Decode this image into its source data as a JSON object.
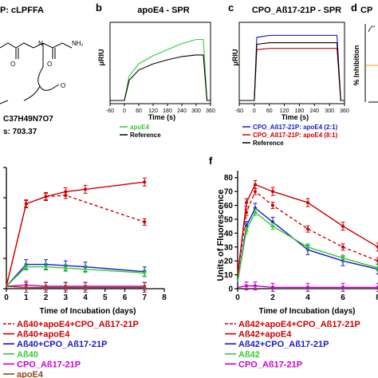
{
  "panel_a": {
    "title": "P: cLPFFA",
    "formula": "C37H49N7O7",
    "mass": "s: 703.37"
  },
  "colors": {
    "green": "#33cc33",
    "black": "#000000",
    "blue": "#1a1ac8",
    "red": "#cc0000",
    "darkred": "#d42020",
    "magenta": "#cc00cc",
    "brown": "#8a4a1a",
    "orange": "#ff9900"
  },
  "chart_data": [
    {
      "panel": "b",
      "type": "line",
      "title": "apoE4 - SPR",
      "xlabel": "Time (s)",
      "ylabel": "μRIU",
      "xlim": [
        -60,
        360
      ],
      "x_ticks": [
        "-60",
        "0",
        "60",
        "120",
        "180",
        "240",
        "300",
        "360"
      ],
      "legend": [
        "apoE4",
        "Reference"
      ],
      "series": [
        {
          "name": "apoE4",
          "x": [
            -60,
            0,
            20,
            60,
            120,
            180,
            240,
            300,
            330,
            345,
            360
          ],
          "y": [
            0,
            0,
            60,
            90,
            110,
            125,
            140,
            150,
            150,
            0,
            0
          ]
        },
        {
          "name": "Reference",
          "x": [
            -60,
            0,
            20,
            60,
            120,
            180,
            240,
            300,
            330,
            345,
            360
          ],
          "y": [
            0,
            0,
            50,
            75,
            90,
            100,
            108,
            112,
            112,
            0,
            0
          ]
        }
      ]
    },
    {
      "panel": "c",
      "type": "line",
      "title": "CPO_Aß17-21P - SPR",
      "xlabel": "Time (s)",
      "ylabel": "μRIU",
      "xlim": [
        -60,
        360
      ],
      "x_ticks": [
        "-60",
        "0",
        "60",
        "120",
        "180",
        "240",
        "300",
        "360"
      ],
      "legend": [
        "CPO_Aß17-21P: apoE4 (2:1)",
        "CPO_Aß17-21P: apoE4 (8:1)",
        "Reference"
      ],
      "series": [
        {
          "name": "CPO_Aß17-21P: apoE4 (2:1)",
          "x": [
            -60,
            0,
            10,
            60,
            180,
            300,
            330,
            345,
            360
          ],
          "y": [
            0,
            0,
            155,
            160,
            160,
            160,
            160,
            0,
            0
          ]
        },
        {
          "name": "CPO_Aß17-21P: apoE4 (8:1)",
          "x": [
            -60,
            0,
            10,
            60,
            180,
            300,
            330,
            345,
            360
          ],
          "y": [
            0,
            0,
            125,
            128,
            128,
            128,
            128,
            0,
            0
          ]
        },
        {
          "name": "Reference",
          "x": [
            -60,
            0,
            10,
            60,
            180,
            300,
            330,
            345,
            360
          ],
          "y": [
            0,
            0,
            138,
            142,
            142,
            142,
            142,
            0,
            0
          ]
        }
      ]
    },
    {
      "panel": "d",
      "type": "line",
      "title": "CP",
      "ylabel": "% Inhibition",
      "series": []
    },
    {
      "panel": "e",
      "type": "line",
      "xlabel": "Time of Incubation (days)",
      "xlim": [
        0,
        8
      ],
      "x_ticks": [
        "0",
        "1",
        "2",
        "3",
        "4",
        "5",
        "6",
        "7",
        "8"
      ],
      "ylim": [
        0,
        100
      ],
      "legend": [
        "Aß40+apoE4+CPO_Aß17-21P",
        "Aß40+apoE4",
        "Aß40+CPO_Aß17-21P",
        "Aß40",
        "CPO_Aß17-21P",
        "apoE4"
      ],
      "series": [
        {
          "name": "Aß40+apoE4+CPO_Aß17-21P",
          "x": [
            0,
            1,
            2,
            3,
            7
          ],
          "y": [
            2,
            70,
            76,
            77,
            55
          ]
        },
        {
          "name": "Aß40+apoE4",
          "x": [
            0,
            1,
            2,
            3,
            4,
            7
          ],
          "y": [
            2,
            70,
            76,
            80,
            82,
            88
          ]
        },
        {
          "name": "Aß40+CPO_Aß17-21P",
          "x": [
            0,
            1,
            2,
            3,
            4,
            7
          ],
          "y": [
            2,
            20,
            20,
            19,
            18,
            14
          ]
        },
        {
          "name": "Aß40",
          "x": [
            0,
            1,
            2,
            3,
            4,
            7
          ],
          "y": [
            2,
            18,
            18,
            17,
            16,
            13
          ]
        },
        {
          "name": "CPO_Aß17-21P",
          "x": [
            0,
            1,
            2,
            3,
            4,
            7
          ],
          "y": [
            2,
            3,
            2,
            2,
            2,
            2
          ]
        },
        {
          "name": "apoE4",
          "x": [
            0,
            1,
            2,
            3,
            4,
            7
          ],
          "y": [
            2,
            1,
            1,
            1,
            1,
            1
          ]
        }
      ]
    },
    {
      "panel": "f",
      "type": "line",
      "xlabel": "Time of Incubation (days)",
      "ylabel": "Units of Fluorescence",
      "xlim": [
        0,
        8
      ],
      "x_ticks": [
        "0",
        "2",
        "4",
        "6",
        "8"
      ],
      "ylim": [
        0,
        85
      ],
      "y_ticks": [
        "0",
        "10",
        "20",
        "30",
        "40",
        "50",
        "60",
        "70",
        "80"
      ],
      "legend": [
        "Aß42+apoE4+CPO_Aß17-21P",
        "Aß42+apoE4",
        "Aß42+CPO_Aß17-21P",
        "Aß42",
        "CPO_Aß17-21P"
      ],
      "series": [
        {
          "name": "Aß42+apoE4+CPO_Aß17-21P",
          "x": [
            0,
            0.5,
            1,
            2,
            4,
            6,
            8
          ],
          "y": [
            10,
            55,
            70,
            60,
            43,
            30,
            20
          ]
        },
        {
          "name": "Aß42+apoE4",
          "x": [
            0,
            0.5,
            1,
            2,
            4,
            6,
            8
          ],
          "y": [
            10,
            62,
            75,
            70,
            62,
            45,
            30
          ]
        },
        {
          "name": "Aß42+CPO_Aß17-21P",
          "x": [
            0,
            0.5,
            1,
            2,
            4,
            6,
            8
          ],
          "y": [
            5,
            45,
            58,
            48,
            28,
            20,
            14
          ]
        },
        {
          "name": "Aß42",
          "x": [
            0,
            0.5,
            1,
            2,
            4,
            6,
            8
          ],
          "y": [
            5,
            42,
            55,
            45,
            30,
            22,
            15
          ]
        },
        {
          "name": "CPO_Aß17-21P",
          "x": [
            0,
            0.5,
            1,
            2,
            4,
            6,
            8
          ],
          "y": [
            1,
            2,
            2,
            1,
            1,
            1,
            1
          ]
        }
      ]
    }
  ]
}
